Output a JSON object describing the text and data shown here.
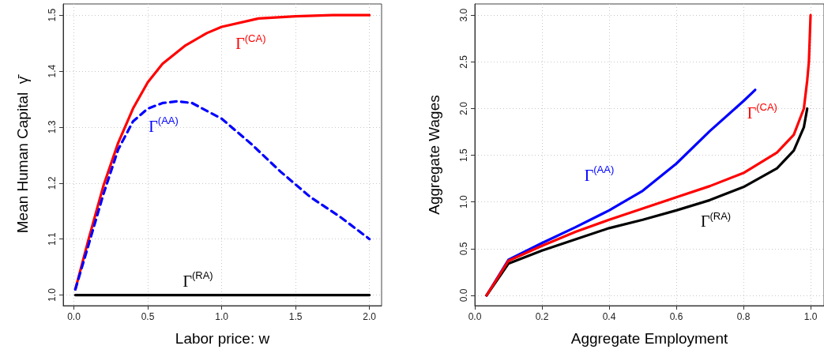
{
  "chart_data": [
    {
      "type": "line",
      "xlabel": "Labor price: w",
      "ylabel": "Mean Human Capital  γ̄",
      "xlim": [
        -0.072,
        2.082
      ],
      "ylim": [
        0.981,
        1.52
      ],
      "xticks": [
        {
          "value": 0,
          "label": "0.0"
        },
        {
          "value": 0.5,
          "label": "0.5"
        },
        {
          "value": 1,
          "label": "1.0"
        },
        {
          "value": 1.5,
          "label": "1.5"
        },
        {
          "value": 2,
          "label": "2.0"
        }
      ],
      "yticks": [
        {
          "value": 1,
          "label": "1.0"
        },
        {
          "value": 1.1,
          "label": "1.1"
        },
        {
          "value": 1.2,
          "label": "1.2"
        },
        {
          "value": 1.3,
          "label": "1.3"
        },
        {
          "value": 1.4,
          "label": "1.4"
        },
        {
          "value": 1.5,
          "label": "1.5"
        }
      ],
      "grid": true,
      "legend": false,
      "marker": "none",
      "series": [
        {
          "name": "Γ$^{(CA)}$",
          "color": "#ff0000",
          "line_style": "solid",
          "x": [
            0.01,
            0.1,
            0.2,
            0.3,
            0.4,
            0.5,
            0.6,
            0.75,
            0.9,
            1.0,
            1.25,
            1.5,
            1.75,
            2.0
          ],
          "values": [
            1.01,
            1.1,
            1.195,
            1.272,
            1.333,
            1.38,
            1.413,
            1.445,
            1.468,
            1.479,
            1.494,
            1.498,
            1.5,
            1.5
          ]
        },
        {
          "name": "Γ$^{(AA)}$",
          "color": "#0000ff",
          "line_style": "dashed",
          "x": [
            0.01,
            0.1,
            0.2,
            0.3,
            0.4,
            0.5,
            0.6,
            0.7,
            0.8,
            1.0,
            1.2,
            1.4,
            1.6,
            1.8,
            2.0
          ],
          "values": [
            1.01,
            1.09,
            1.18,
            1.26,
            1.31,
            1.333,
            1.343,
            1.346,
            1.343,
            1.315,
            1.27,
            1.22,
            1.175,
            1.14,
            1.1
          ]
        },
        {
          "name": "Γ$^{(RA)}$",
          "color": "#000000",
          "line_style": "solid",
          "x": [
            0.01,
            0.5,
            1.0,
            1.5,
            2.0
          ],
          "values": [
            1.0,
            1.0,
            1.0,
            1.0,
            1.0
          ]
        }
      ]
    },
    {
      "type": "line",
      "xlabel": "Aggregate Employment",
      "ylabel": "Aggregate Wages",
      "xlim": [
        0,
        1.04
      ],
      "ylim": [
        -0.11,
        3.12
      ],
      "xticks": [
        {
          "value": 0,
          "label": "0.0"
        },
        {
          "value": 0.2,
          "label": "0.2"
        },
        {
          "value": 0.4,
          "label": "0.4"
        },
        {
          "value": 0.6,
          "label": "0.6"
        },
        {
          "value": 0.8,
          "label": "0.8"
        },
        {
          "value": 1,
          "label": "1.0"
        }
      ],
      "yticks": [
        {
          "value": 0,
          "label": "0.0"
        },
        {
          "value": 0.5,
          "label": "0.5"
        },
        {
          "value": 1,
          "label": "1.0"
        },
        {
          "value": 1.5,
          "label": "1.5"
        },
        {
          "value": 2,
          "label": "2.0"
        },
        {
          "value": 2.5,
          "label": "2.5"
        },
        {
          "value": 3,
          "label": "3.0"
        }
      ],
      "grid": true,
      "legend": false,
      "marker": "none",
      "series": [
        {
          "name": "Γ$^{(AA)}$",
          "color": "#0000ff",
          "line_style": "solid",
          "x": [
            0.035,
            0.1,
            0.2,
            0.3,
            0.4,
            0.5,
            0.6,
            0.7,
            0.8,
            0.835
          ],
          "values": [
            0,
            0.38,
            0.56,
            0.73,
            0.91,
            1.12,
            1.41,
            1.76,
            2.08,
            2.2
          ]
        },
        {
          "name": "Γ$^{(RA)}$",
          "color": "#000000",
          "line_style": "solid",
          "x": [
            0.035,
            0.1,
            0.2,
            0.3,
            0.4,
            0.5,
            0.6,
            0.7,
            0.8,
            0.9,
            0.95,
            0.98,
            0.99
          ],
          "values": [
            0,
            0.34,
            0.48,
            0.6,
            0.72,
            0.81,
            0.91,
            1.02,
            1.16,
            1.36,
            1.55,
            1.8,
            2.0
          ]
        },
        {
          "name": "Γ$^{(CA)}$",
          "color": "#ff0000",
          "line_style": "solid",
          "x": [
            0.035,
            0.1,
            0.2,
            0.3,
            0.4,
            0.5,
            0.6,
            0.7,
            0.8,
            0.9,
            0.95,
            0.98,
            0.99,
            0.995,
            1.0
          ],
          "values": [
            0,
            0.37,
            0.53,
            0.68,
            0.81,
            0.93,
            1.05,
            1.17,
            1.31,
            1.53,
            1.72,
            2.0,
            2.3,
            2.5,
            3.0
          ]
        }
      ]
    }
  ]
}
